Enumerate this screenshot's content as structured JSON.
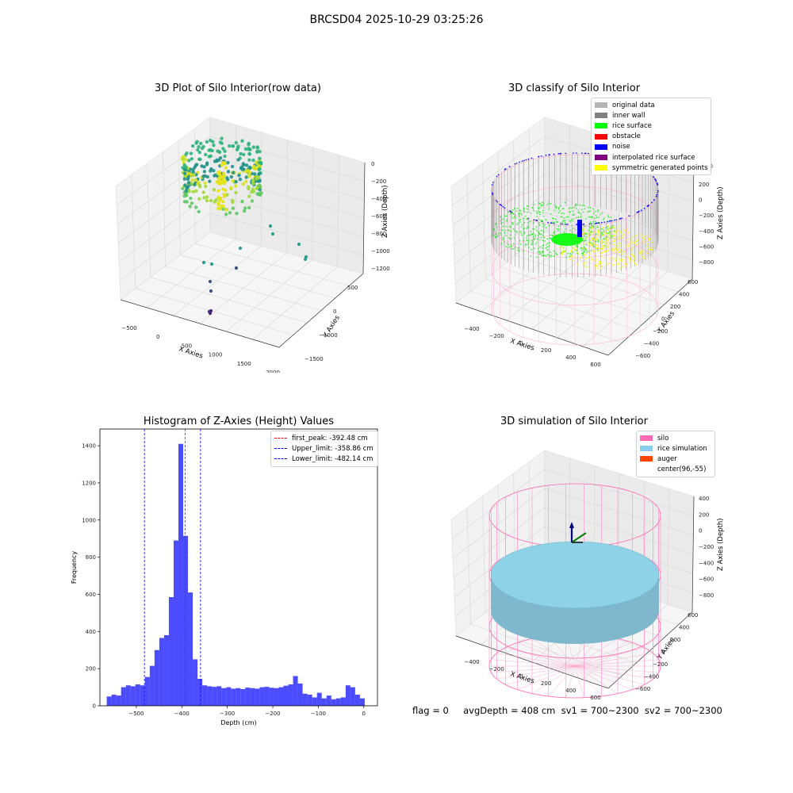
{
  "suptitle": "BRCSD04 2025-10-29 03:25:26",
  "panels": {
    "raw": {
      "title": "3D Plot of Silo Interior(row data)",
      "xlabel": "X Axies",
      "ylabel": "Y Axies",
      "zlabel": "Z Axies (Depth)",
      "xticks": [
        "−500",
        "0",
        "500",
        "1000",
        "1500",
        "2000"
      ],
      "yticks": [
        "500",
        "0",
        "−1000",
        "−1500"
      ],
      "zticks": [
        "0",
        "−200",
        "−400",
        "−600",
        "−800",
        "−1000",
        "−1200"
      ]
    },
    "classify": {
      "title": "3D classify of Silo Interior",
      "xlabel": "X Axies",
      "ylabel": "Y Axies",
      "zlabel": "Z Axies (Depth)",
      "xticks": [
        "−400",
        "−200",
        "0",
        "200",
        "400",
        "600"
      ],
      "yticks": [
        "600",
        "400",
        "200",
        "0",
        "−200",
        "−400",
        "−600"
      ],
      "zticks": [
        "200",
        "0",
        "−200",
        "−400",
        "−600",
        "−800"
      ],
      "ztop_partial": "00",
      "legend": [
        {
          "label": "original data",
          "color": "#b5b5b5"
        },
        {
          "label": "inner wall",
          "color": "#808080"
        },
        {
          "label": "rice surface",
          "color": "#00ff00"
        },
        {
          "label": "obstacle",
          "color": "#ff0000"
        },
        {
          "label": "noise",
          "color": "#0000ff"
        },
        {
          "label": "interpolated rice surface",
          "color": "#800080"
        },
        {
          "label": "symmetric generated points",
          "color": "#ffff00"
        }
      ]
    },
    "histogram": {
      "title": "Histogram of Z-Axies (Height) Values",
      "legend": [
        {
          "label": "first_peak: -392.48 cm",
          "color": "#ff0000"
        },
        {
          "label": "Upper_limit: -358.86 cm",
          "color": "#0000ff"
        },
        {
          "label": "Lower_limit: -482.14 cm",
          "color": "#0000ff"
        }
      ]
    },
    "simulation": {
      "title": "3D simulation of Silo Interior",
      "xlabel": "X Axies",
      "ylabel": "Y Axies",
      "zlabel": "Z Axies (Depth)",
      "xticks": [
        "−400",
        "−200",
        "0",
        "200",
        "400",
        "600"
      ],
      "yticks": [
        "600",
        "400",
        "200",
        "0",
        "−200",
        "−400",
        "−600"
      ],
      "zticks": [
        "400",
        "200",
        "0",
        "−200",
        "−400",
        "−600",
        "−800"
      ],
      "legend": [
        {
          "label": "silo",
          "color": "#ff69b4"
        },
        {
          "label": "rice simulation",
          "color": "#87ceeb"
        },
        {
          "label": "auger",
          "color": "#ff4500"
        },
        {
          "label": "center(96,-55)",
          "color": ""
        }
      ]
    }
  },
  "status_text": "flag = 0     avgDepth = 408 cm  sv1 = 700~2300  sv2 = 700~2300",
  "chart_data": [
    {
      "type": "bar",
      "title": "Histogram of Z-Axies (Height) Values",
      "xlabel": "Depth (cm)",
      "ylabel": "Frequency",
      "xlim": [
        -580,
        30
      ],
      "ylim": [
        0,
        1490
      ],
      "xticks": [
        -500,
        -400,
        -300,
        -200,
        -100,
        0
      ],
      "yticks": [
        0,
        200,
        400,
        600,
        800,
        1000,
        1200,
        1400
      ],
      "bin_width": 10.5,
      "bin_starts": [
        -565,
        -554.5,
        -544,
        -533.5,
        -523,
        -512.5,
        -502,
        -491.5,
        -481,
        -470.5,
        -460,
        -449.5,
        -439,
        -428.5,
        -418,
        -407.5,
        -397,
        -386.5,
        -376,
        -365.5,
        -355,
        -344.5,
        -334,
        -323.5,
        -313,
        -302.5,
        -292,
        -281.5,
        -271,
        -260.5,
        -250,
        -239.5,
        -229,
        -218.5,
        -208,
        -197.5,
        -187,
        -176.5,
        -166,
        -155.5,
        -145,
        -134.5,
        -124,
        -113.5,
        -103,
        -92.5,
        -82,
        -71.5,
        -61,
        -50.5,
        -40,
        -29.5,
        -19,
        -8.5
      ],
      "values": [
        50,
        60,
        55,
        100,
        110,
        105,
        115,
        110,
        155,
        215,
        300,
        365,
        380,
        585,
        890,
        1410,
        915,
        610,
        250,
        145,
        110,
        105,
        102,
        105,
        95,
        100,
        92,
        95,
        90,
        98,
        95,
        92,
        100,
        102,
        97,
        95,
        100,
        108,
        115,
        160,
        120,
        65,
        60,
        45,
        70,
        40,
        55,
        35,
        40,
        45,
        110,
        100,
        60,
        40
      ],
      "color": "#0000ff",
      "vlines": [
        {
          "name": "first_peak: -392.48 cm",
          "x": -392.48,
          "color": "#ff0000"
        },
        {
          "name": "Upper_limit: -358.86 cm",
          "x": -358.86,
          "color": "#0000ff"
        },
        {
          "name": "Lower_limit: -482.14 cm",
          "x": -482.14,
          "color": "#0000ff"
        }
      ],
      "legend_position": "upper right"
    }
  ]
}
